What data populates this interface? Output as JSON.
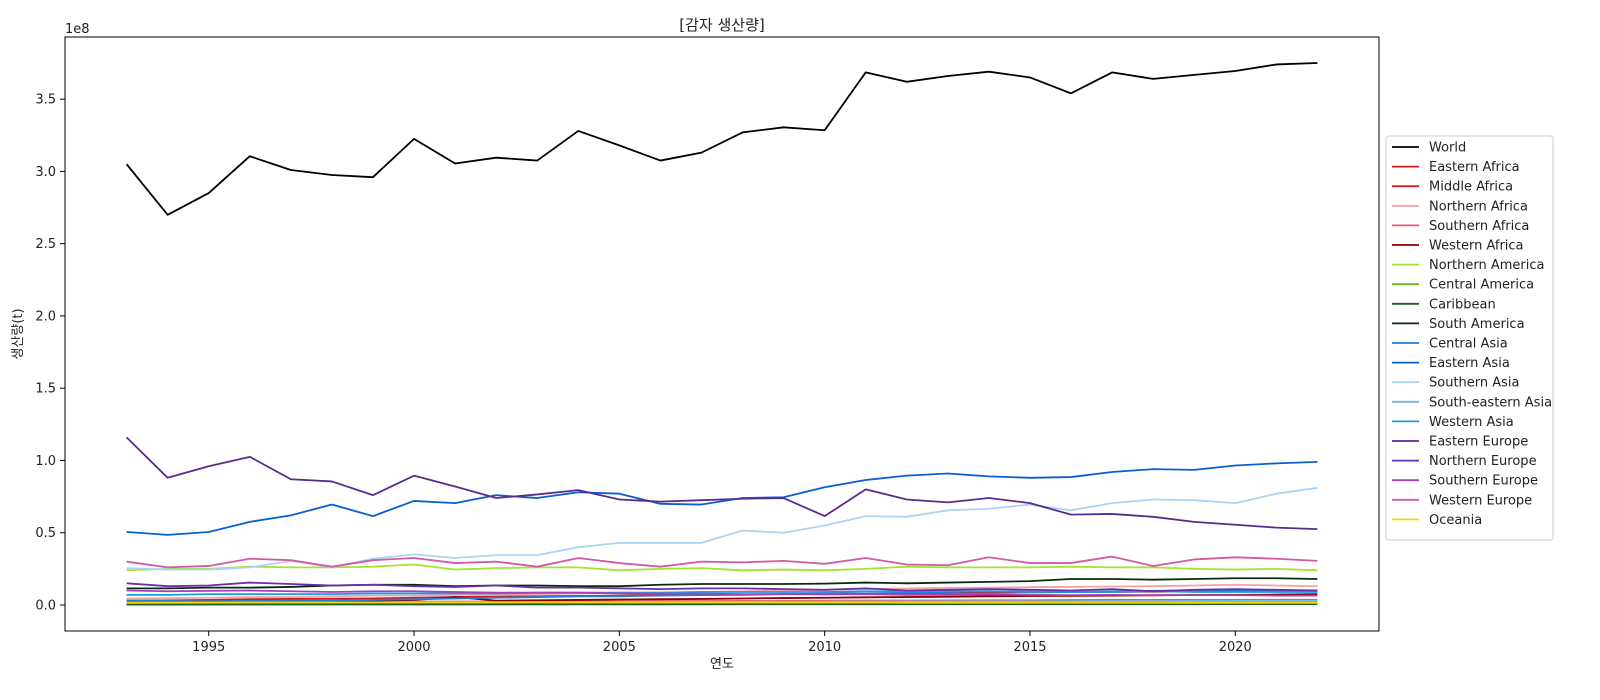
{
  "chart_data": {
    "type": "line",
    "title": "[감자 생산량]",
    "xlabel": "연도",
    "ylabel": "생산량(t)",
    "y_scale_label": "1e8",
    "y_scale": 100000000,
    "xlim": [
      1991.5,
      2023.5
    ],
    "ylim": [
      -18000000,
      393000000
    ],
    "x_ticks": [
      1995,
      2000,
      2005,
      2010,
      2015,
      2020
    ],
    "x_tick_labels": [
      "1995",
      "2000",
      "2005",
      "2010",
      "2015",
      "2020"
    ],
    "y_ticks": [
      0,
      50000000,
      100000000,
      150000000,
      200000000,
      250000000,
      300000000,
      350000000
    ],
    "y_tick_labels": [
      "0.0",
      "0.5",
      "1.0",
      "1.5",
      "2.0",
      "2.5",
      "3.0",
      "3.5"
    ],
    "grid": false,
    "legend_position": "center-right, outside plot",
    "x": [
      1993,
      1994,
      1995,
      1996,
      1997,
      1998,
      1999,
      2000,
      2001,
      2002,
      2003,
      2004,
      2005,
      2006,
      2007,
      2008,
      2009,
      2010,
      2011,
      2012,
      2013,
      2014,
      2015,
      2016,
      2017,
      2018,
      2019,
      2020,
      2021,
      2022
    ],
    "series": [
      {
        "name": "World",
        "color": "#000000",
        "values": [
          305000000,
          270000000,
          285000000,
          310500000,
          301000000,
          297500000,
          296000000,
          322500000,
          305500000,
          309500000,
          307500000,
          328000000,
          318000000,
          307500000,
          313000000,
          327000000,
          330500000,
          328500000,
          368500000,
          362000000,
          366000000,
          369000000,
          365000000,
          354000000,
          368500000,
          364000000,
          366800000,
          369500000,
          374000000,
          375000000
        ]
      },
      {
        "name": "Eastern Africa",
        "color": "#d7191c",
        "values": [
          3000000,
          3200000,
          3500000,
          4000000,
          4200000,
          4300000,
          4600000,
          5000000,
          5500000,
          5800000,
          6000000,
          6300000,
          6500000,
          6800000,
          7000000,
          7300000,
          7500000,
          7800000,
          8000000,
          8200000,
          8300000,
          8500000,
          8700000,
          8900000,
          9000000,
          9200000,
          9400000,
          9600000,
          9800000,
          10000000
        ]
      },
      {
        "name": "Middle Africa",
        "color": "#e41a1c",
        "values": [
          300000,
          300000,
          350000,
          350000,
          400000,
          400000,
          450000,
          450000,
          500000,
          500000,
          550000,
          600000,
          600000,
          650000,
          700000,
          700000,
          750000,
          800000,
          800000,
          850000,
          900000,
          900000,
          950000,
          1000000,
          1000000,
          1050000,
          1100000,
          1100000,
          1150000,
          1200000
        ]
      },
      {
        "name": "Northern Africa",
        "color": "#f4a3a8",
        "values": [
          4500000,
          4700000,
          5000000,
          5500000,
          5500000,
          6000000,
          6500000,
          6500000,
          7000000,
          7000000,
          7500000,
          8000000,
          8500000,
          8500000,
          9000000,
          9500000,
          10000000,
          10500000,
          11000000,
          11500000,
          11800000,
          12000000,
          12300000,
          12500000,
          12800000,
          13000000,
          13500000,
          14000000,
          13500000,
          13000000
        ]
      },
      {
        "name": "Southern Africa",
        "color": "#e8566b",
        "values": [
          1800000,
          1900000,
          2000000,
          2000000,
          2100000,
          2100000,
          2200000,
          2300000,
          2400000,
          2400000,
          2500000,
          2500000,
          2600000,
          2700000,
          2700000,
          2800000,
          2900000,
          3000000,
          3100000,
          3100000,
          3200000,
          3300000,
          3300000,
          3400000,
          3500000,
          3500000,
          3500000,
          3500000,
          3600000,
          3600000
        ]
      },
      {
        "name": "Western Africa",
        "color": "#8b0000",
        "values": [
          2000000,
          2100000,
          2200000,
          2400000,
          2500000,
          2700000,
          3000000,
          3500000,
          5500000,
          3000000,
          3300000,
          3500000,
          3800000,
          4000000,
          4200000,
          4500000,
          4800000,
          5000000,
          5300000,
          5500000,
          5700000,
          6000000,
          6200000,
          6300000,
          6500000,
          6700000,
          6900000,
          7000000,
          7200000,
          7500000
        ]
      },
      {
        "name": "Northern America",
        "color": "#a6e22e",
        "values": [
          24000000,
          25000000,
          25000000,
          26500000,
          26000000,
          26000000,
          26500000,
          28000000,
          24500000,
          25500000,
          26000000,
          26000000,
          24000000,
          25000000,
          25500000,
          24000000,
          24500000,
          24000000,
          25000000,
          26500000,
          26000000,
          26000000,
          26000000,
          26500000,
          26000000,
          26000000,
          25000000,
          24500000,
          25000000,
          24000000
        ]
      },
      {
        "name": "Central America",
        "color": "#66b821",
        "values": [
          1300000,
          1350000,
          1400000,
          1400000,
          1450000,
          1450000,
          1500000,
          1500000,
          1550000,
          1600000,
          1600000,
          1650000,
          1700000,
          1700000,
          1750000,
          1800000,
          1800000,
          1850000,
          1900000,
          1900000,
          1950000,
          2000000,
          2000000,
          2000000,
          2050000,
          2100000,
          2100000,
          2100000,
          2150000,
          2200000
        ]
      },
      {
        "name": "Caribbean",
        "color": "#1b5e20",
        "values": [
          400000,
          400000,
          400000,
          420000,
          420000,
          420000,
          440000,
          440000,
          440000,
          460000,
          460000,
          460000,
          480000,
          480000,
          480000,
          500000,
          500000,
          500000,
          520000,
          520000,
          520000,
          540000,
          540000,
          540000,
          560000,
          560000,
          560000,
          580000,
          580000,
          580000
        ]
      },
      {
        "name": "South America",
        "color": "#0b2a12",
        "values": [
          11500000,
          11500000,
          12000000,
          12000000,
          12500000,
          13500000,
          14000000,
          14000000,
          13000000,
          13500000,
          13500000,
          13000000,
          13000000,
          14000000,
          14500000,
          14500000,
          14500000,
          14800000,
          15500000,
          15000000,
          15500000,
          16000000,
          16500000,
          18000000,
          18000000,
          17500000,
          18000000,
          18500000,
          18500000,
          18000000
        ]
      },
      {
        "name": "Central Asia",
        "color": "#1f7fd4",
        "values": [
          3000000,
          2800000,
          2600000,
          2800000,
          3000000,
          3100000,
          3500000,
          4000000,
          4500000,
          5000000,
          5500000,
          6000000,
          6000000,
          6500000,
          6800000,
          7000000,
          7500000,
          7800000,
          8000000,
          8500000,
          9000000,
          9500000,
          9200000,
          9000000,
          9500000,
          9800000,
          10000000,
          10200000,
          10000000,
          9800000
        ]
      },
      {
        "name": "Eastern Asia",
        "color": "#0a5fd0",
        "values": [
          50500000,
          48500000,
          50500000,
          57500000,
          62000000,
          69500000,
          61500000,
          72000000,
          70500000,
          76000000,
          74000000,
          78000000,
          77000000,
          70000000,
          69500000,
          74000000,
          74500000,
          81500000,
          86500000,
          89500000,
          91000000,
          89000000,
          88000000,
          88500000,
          92000000,
          94000000,
          93500000,
          96500000,
          98000000,
          99000000
        ]
      },
      {
        "name": "Southern Asia",
        "color": "#aad4f5",
        "values": [
          25500000,
          24500000,
          24500000,
          26000000,
          30500000,
          26000000,
          32000000,
          35000000,
          32500000,
          34500000,
          34500000,
          40000000,
          43000000,
          43000000,
          43000000,
          51500000,
          50000000,
          55000000,
          61500000,
          61000000,
          65500000,
          66500000,
          69500000,
          65500000,
          70500000,
          73000000,
          72500000,
          70500000,
          77000000,
          81000000
        ]
      },
      {
        "name": "South-eastern Asia",
        "color": "#74b6ea",
        "values": [
          1500000,
          1550000,
          1600000,
          1650000,
          1700000,
          1750000,
          1800000,
          1850000,
          1900000,
          1950000,
          2000000,
          2050000,
          2100000,
          2150000,
          2200000,
          2250000,
          2300000,
          2350000,
          2400000,
          2450000,
          2500000,
          2550000,
          2600000,
          2650000,
          2700000,
          2750000,
          2800000,
          2850000,
          2900000,
          2950000
        ]
      },
      {
        "name": "Western Asia",
        "color": "#1e9be0",
        "values": [
          7000000,
          7000000,
          7500000,
          7500000,
          7500000,
          7500000,
          8000000,
          8000000,
          8000000,
          8000000,
          8500000,
          8500000,
          8500000,
          8500000,
          9000000,
          9000000,
          9000000,
          9000000,
          9500000,
          9500000,
          9500000,
          9500000,
          9000000,
          9000000,
          9000000,
          9500000,
          9000000,
          9000000,
          9000000,
          9000000
        ]
      },
      {
        "name": "Eastern Europe",
        "color": "#5c2a8e",
        "values": [
          116000000,
          88000000,
          96000000,
          102500000,
          87000000,
          85500000,
          76000000,
          89500000,
          82000000,
          74000000,
          76500000,
          79500000,
          73000000,
          71500000,
          72500000,
          73500000,
          74000000,
          61500000,
          80000000,
          73000000,
          71000000,
          74000000,
          70500000,
          62500000,
          63000000,
          61000000,
          57500000,
          55500000,
          53500000,
          52500000
        ]
      },
      {
        "name": "Northern Europe",
        "color": "#6a2fa8",
        "values": [
          15000000,
          13000000,
          13500000,
          15500000,
          14500000,
          13500000,
          14000000,
          13000000,
          12500000,
          13500000,
          12000000,
          12000000,
          11500000,
          11000000,
          11500000,
          11500000,
          11000000,
          10500000,
          11500000,
          10000000,
          10500000,
          11000000,
          10500000,
          10000000,
          11000000,
          9500000,
          10500000,
          11000000,
          10500000,
          10000000
        ]
      },
      {
        "name": "Southern Europe",
        "color": "#a640b8",
        "values": [
          10000000,
          9500000,
          9800000,
          10000000,
          9500000,
          9000000,
          9500000,
          9500000,
          9000000,
          8500000,
          8500000,
          8500000,
          8000000,
          7800000,
          7800000,
          7500000,
          7500000,
          7300000,
          7500000,
          7000000,
          7000000,
          7200000,
          7000000,
          6800000,
          7000000,
          6800000,
          6800000,
          6800000,
          6500000,
          6500000
        ]
      },
      {
        "name": "Western Europe",
        "color": "#d358a8",
        "values": [
          30000000,
          26000000,
          27000000,
          32000000,
          31000000,
          26500000,
          31000000,
          32500000,
          29000000,
          30000000,
          26500000,
          32500000,
          29000000,
          26500000,
          30000000,
          29500000,
          30500000,
          28500000,
          32500000,
          28000000,
          27500000,
          33000000,
          29000000,
          29000000,
          33500000,
          27000000,
          31500000,
          33000000,
          32000000,
          30500000
        ]
      },
      {
        "name": "Oceania",
        "color": "#f5d400",
        "values": [
          1600000,
          1600000,
          1650000,
          1700000,
          1700000,
          1750000,
          1750000,
          1800000,
          1800000,
          1800000,
          1800000,
          1750000,
          1750000,
          1700000,
          1700000,
          1700000,
          1650000,
          1650000,
          1650000,
          1600000,
          1600000,
          1600000,
          1600000,
          1550000,
          1550000,
          1550000,
          1500000,
          1500000,
          1500000,
          1500000
        ]
      }
    ]
  }
}
